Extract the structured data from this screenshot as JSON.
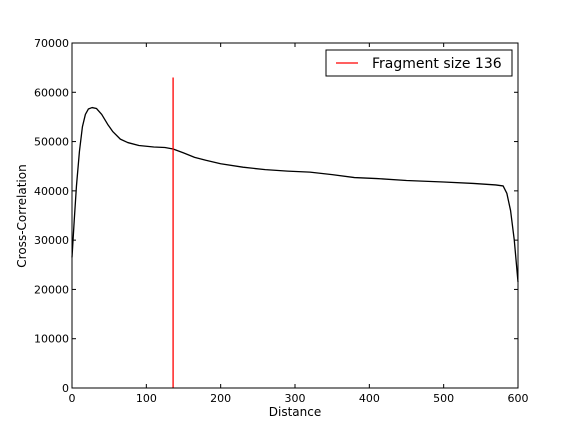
{
  "chart_data": {
    "type": "line",
    "xlabel": "Distance",
    "ylabel": "Cross-Correlation",
    "xlim": [
      0,
      600
    ],
    "ylim": [
      0,
      70000
    ],
    "xticks": [
      0,
      100,
      200,
      300,
      400,
      500,
      600
    ],
    "yticks": [
      0,
      10000,
      20000,
      30000,
      40000,
      50000,
      60000,
      70000
    ],
    "grid": false,
    "legend_position": "top-right",
    "series": [
      {
        "color": "#000000",
        "points": [
          [
            0,
            26500
          ],
          [
            3,
            34000
          ],
          [
            6,
            41000
          ],
          [
            10,
            48000
          ],
          [
            14,
            53000
          ],
          [
            18,
            55500
          ],
          [
            22,
            56600
          ],
          [
            27,
            56900
          ],
          [
            33,
            56700
          ],
          [
            40,
            55500
          ],
          [
            48,
            53500
          ],
          [
            55,
            52000
          ],
          [
            65,
            50500
          ],
          [
            75,
            49800
          ],
          [
            90,
            49200
          ],
          [
            110,
            48900
          ],
          [
            125,
            48800
          ],
          [
            136,
            48500
          ],
          [
            150,
            47700
          ],
          [
            165,
            46800
          ],
          [
            180,
            46200
          ],
          [
            200,
            45500
          ],
          [
            230,
            44800
          ],
          [
            260,
            44300
          ],
          [
            290,
            44000
          ],
          [
            320,
            43800
          ],
          [
            350,
            43300
          ],
          [
            380,
            42700
          ],
          [
            410,
            42500
          ],
          [
            450,
            42100
          ],
          [
            500,
            41800
          ],
          [
            540,
            41500
          ],
          [
            570,
            41200
          ],
          [
            580,
            41000
          ],
          [
            585,
            39500
          ],
          [
            590,
            36000
          ],
          [
            595,
            30000
          ],
          [
            600,
            21500
          ]
        ]
      }
    ],
    "vlines": [
      {
        "name": "Fragment size 136",
        "x": 136,
        "ymin": 0,
        "ymax": 63000,
        "color": "#ff0000"
      }
    ]
  }
}
